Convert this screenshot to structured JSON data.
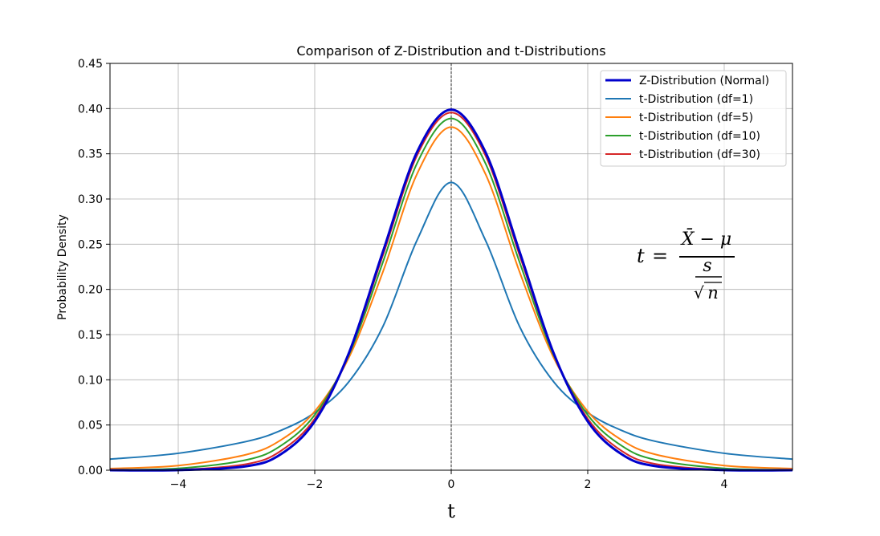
{
  "chart_data": {
    "type": "line",
    "title": "Comparison of Z-Distribution and t-Distributions",
    "xlabel": "t",
    "ylabel": "Probability Density",
    "xlim": [
      -5,
      5
    ],
    "ylim": [
      0,
      0.45
    ],
    "xticks": [
      -4,
      -2,
      0,
      2,
      4
    ],
    "xtick_labels": [
      "−4",
      "−2",
      "0",
      "2",
      "4"
    ],
    "yticks": [
      0.0,
      0.05,
      0.1,
      0.15,
      0.2,
      0.25,
      0.3,
      0.35,
      0.4,
      0.45
    ],
    "ytick_labels": [
      "0.00",
      "0.05",
      "0.10",
      "0.15",
      "0.20",
      "0.25",
      "0.30",
      "0.35",
      "0.40",
      "0.45"
    ],
    "grid": true,
    "legend_position": "top-right",
    "vertical_reference_line_x": 0,
    "series": [
      {
        "name": "Z-Distribution (Normal)",
        "color": "#0000cc",
        "x": [
          -5,
          -4,
          -3,
          -2.5,
          -2,
          -1.5,
          -1,
          -0.5,
          0,
          0.5,
          1,
          1.5,
          2,
          2.5,
          3,
          4,
          5
        ],
        "y": [
          0.0,
          0.0001,
          0.0044,
          0.0175,
          0.054,
          0.1295,
          0.242,
          0.3521,
          0.3989,
          0.3521,
          0.242,
          0.1295,
          0.054,
          0.0175,
          0.0044,
          0.0001,
          0.0
        ]
      },
      {
        "name": "t-Distribution (df=1)",
        "color": "#1f77b4",
        "x": [
          -5,
          -4,
          -3,
          -2.5,
          -2,
          -1.5,
          -1,
          -0.5,
          0,
          0.5,
          1,
          1.5,
          2,
          2.5,
          3,
          4,
          5
        ],
        "y": [
          0.0122,
          0.0187,
          0.0318,
          0.0439,
          0.0637,
          0.0979,
          0.1592,
          0.2546,
          0.3183,
          0.2546,
          0.1592,
          0.0979,
          0.0637,
          0.0439,
          0.0318,
          0.0187,
          0.0122
        ]
      },
      {
        "name": "t-Distribution (df=5)",
        "color": "#ff7f0e",
        "x": [
          -5,
          -4,
          -3,
          -2.5,
          -2,
          -1.5,
          -1,
          -0.5,
          0,
          0.5,
          1,
          1.5,
          2,
          2.5,
          3,
          4,
          5
        ],
        "y": [
          0.0018,
          0.0051,
          0.0173,
          0.0332,
          0.0651,
          0.1245,
          0.2197,
          0.3279,
          0.3796,
          0.3279,
          0.2197,
          0.1245,
          0.0651,
          0.0332,
          0.0173,
          0.0051,
          0.0018
        ]
      },
      {
        "name": "t-Distribution (df=10)",
        "color": "#2ca02c",
        "x": [
          -5,
          -4,
          -3,
          -2.5,
          -2,
          -1.5,
          -1,
          -0.5,
          0,
          0.5,
          1,
          1.5,
          2,
          2.5,
          3,
          4,
          5
        ],
        "y": [
          0.0004,
          0.002,
          0.0114,
          0.0269,
          0.0611,
          0.1274,
          0.2304,
          0.3397,
          0.3891,
          0.3397,
          0.2304,
          0.1274,
          0.0611,
          0.0269,
          0.0114,
          0.002,
          0.0004
        ]
      },
      {
        "name": "t-Distribution (df=30)",
        "color": "#d62728",
        "x": [
          -5,
          -4,
          -3,
          -2.5,
          -2,
          -1.5,
          -1,
          -0.5,
          0,
          0.5,
          1,
          1.5,
          2,
          2.5,
          3,
          4,
          5
        ],
        "y": [
          0.0,
          0.0004,
          0.0068,
          0.0212,
          0.057,
          0.129,
          0.238,
          0.3483,
          0.3956,
          0.3483,
          0.238,
          0.129,
          0.057,
          0.0212,
          0.0068,
          0.0004,
          0.0
        ]
      }
    ],
    "annotations": {
      "formula": {
        "lhs": "t",
        "equals": "=",
        "numerator": "X̄ − μ",
        "denominator_top": "s",
        "denominator_bottom": "n",
        "radical": "√"
      }
    }
  }
}
